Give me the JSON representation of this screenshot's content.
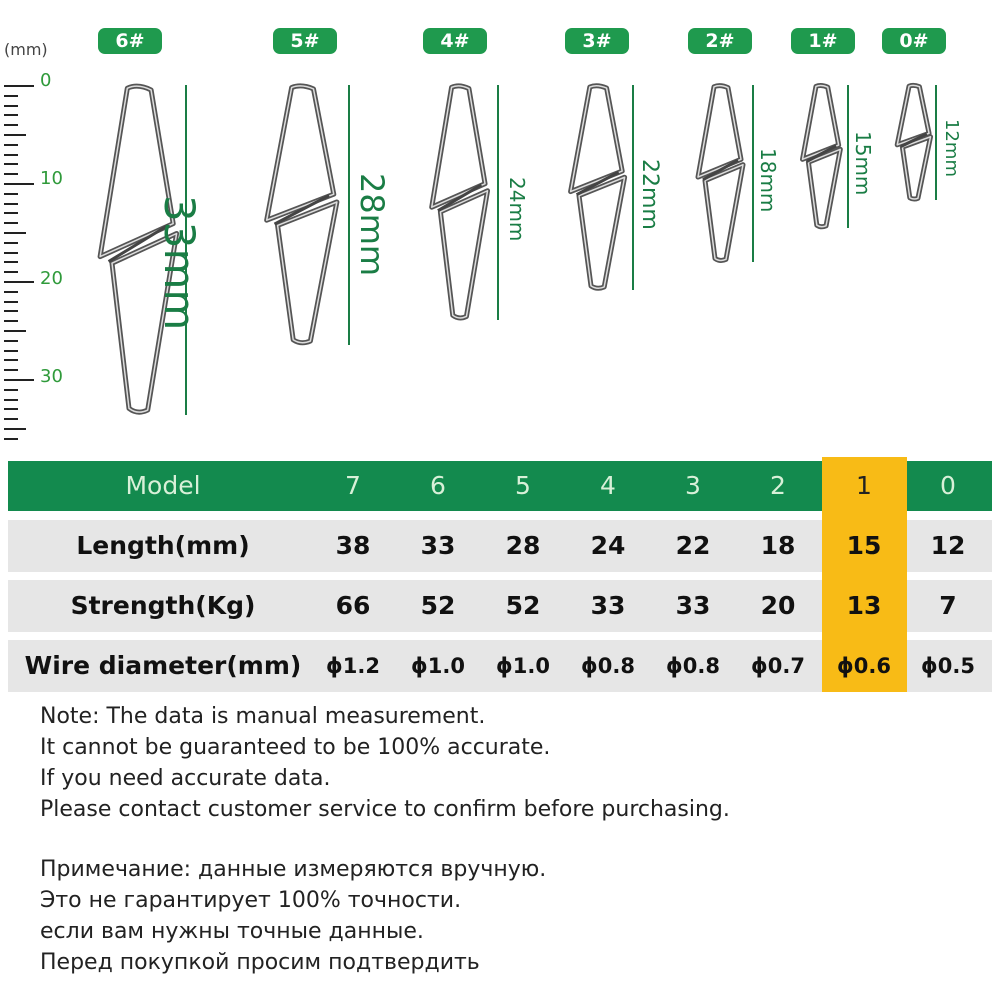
{
  "ruler": {
    "unit": "(mm)",
    "labels": [
      "0",
      "10",
      "20",
      "30"
    ]
  },
  "clips": [
    {
      "tag": "6#",
      "length_label": "33mm"
    },
    {
      "tag": "5#",
      "length_label": "28mm"
    },
    {
      "tag": "4#",
      "length_label": "24mm"
    },
    {
      "tag": "3#",
      "length_label": "22mm"
    },
    {
      "tag": "2#",
      "length_label": "18mm"
    },
    {
      "tag": "1#",
      "length_label": "15mm"
    },
    {
      "tag": "0#",
      "length_label": "12mm"
    }
  ],
  "table": {
    "header": {
      "label": "Model",
      "values": [
        "7",
        "6",
        "5",
        "4",
        "3",
        "2",
        "1",
        "0"
      ]
    },
    "rows": [
      {
        "label": "Length(mm)",
        "values": [
          "38",
          "33",
          "28",
          "24",
          "22",
          "18",
          "15",
          "12"
        ]
      },
      {
        "label": "Strength(Kg)",
        "values": [
          "66",
          "52",
          "52",
          "33",
          "33",
          "20",
          "13",
          "7"
        ]
      },
      {
        "label": "Wire diameter(mm)",
        "values": [
          "ϕ1.2",
          "ϕ1.0",
          "ϕ1.0",
          "ϕ0.8",
          "ϕ0.8",
          "ϕ0.7",
          "ϕ0.6",
          "ϕ0.5"
        ]
      }
    ],
    "highlighted_model": "1"
  },
  "colors": {
    "green": "#138a4e",
    "tag_green": "#1f9a4e",
    "highlight": "#f8bb16",
    "row_bg": "#e6e6e6"
  },
  "notes_en": [
    "Note: The data is manual measurement.",
    "It cannot be guaranteed to be 100% accurate.",
    "If you need accurate data.",
    "Please contact customer service to confirm before purchasing."
  ],
  "notes_ru": [
    "Примечание: данные измеряются вручную.",
    "Это не гарантирует 100% точности.",
    "если вам нужны точные данные.",
    "Перед покупкой просим подтвердить"
  ]
}
